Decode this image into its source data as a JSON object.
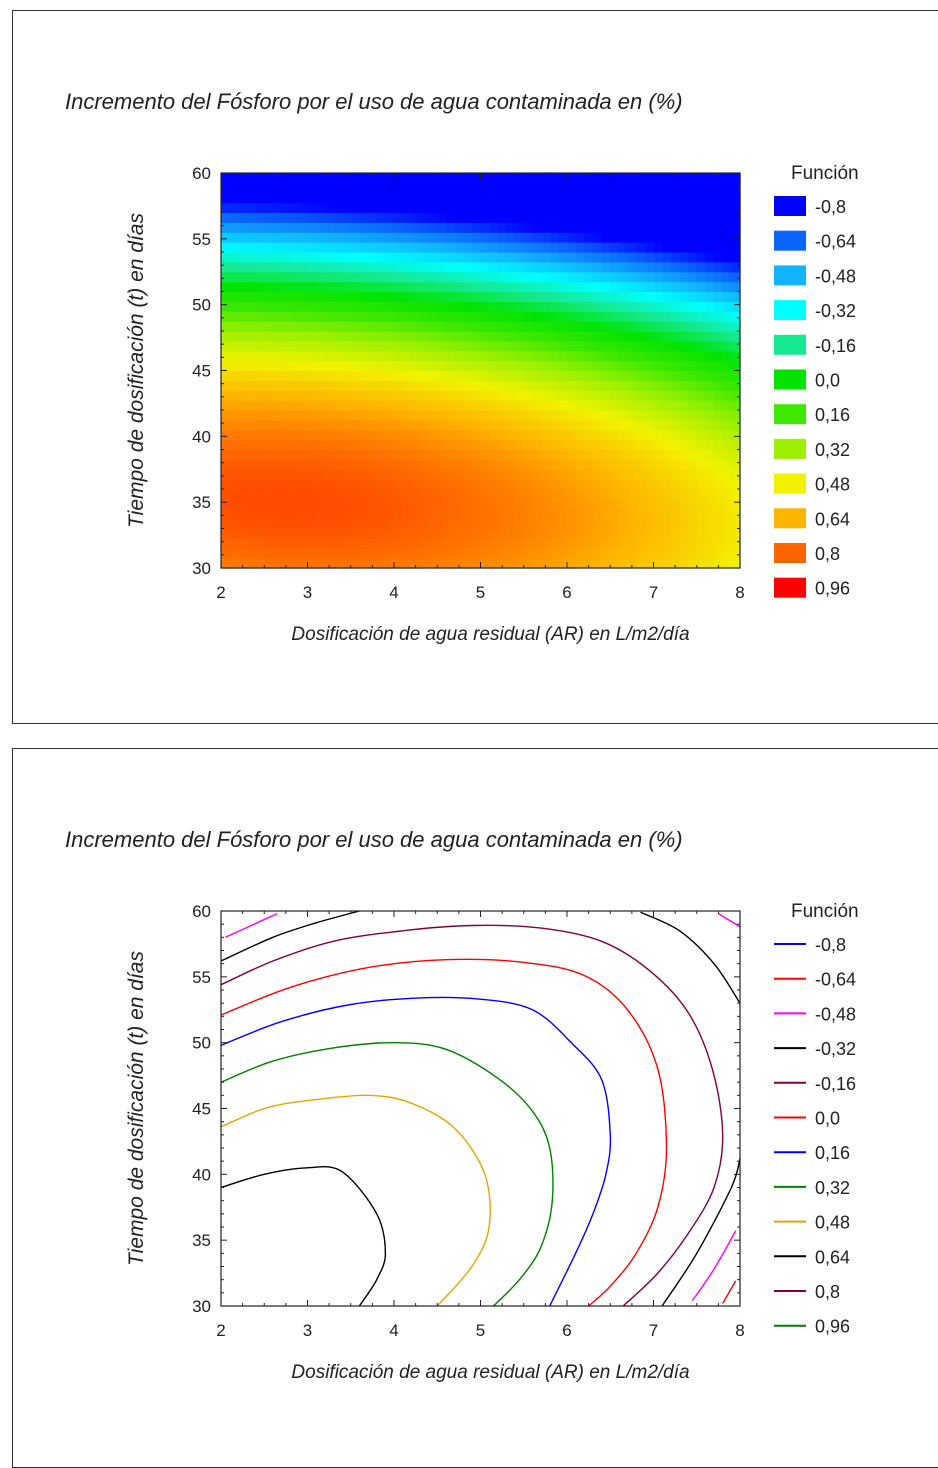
{
  "chart_data": [
    {
      "type": "heatmap",
      "title": "Incremento del Fósforo por el uso de agua contaminada en (%)",
      "xlabel": "Dosificación de agua residual (AR) en L/m2/día",
      "ylabel": "Tiempo de dosificación (t) en días",
      "xlim": [
        2,
        8
      ],
      "ylim": [
        30,
        60
      ],
      "xticks": [
        "2",
        "3",
        "4",
        "5",
        "6",
        "7",
        "8"
      ],
      "yticks": [
        "30",
        "35",
        "40",
        "45",
        "50",
        "55",
        "60"
      ],
      "legend_title": "Función",
      "legend_position": "right",
      "legend": [
        {
          "label": "-0,8",
          "color": "#0000ff"
        },
        {
          "label": "-0,64",
          "color": "#0a64ff"
        },
        {
          "label": "-0,48",
          "color": "#10b4ff"
        },
        {
          "label": "-0,32",
          "color": "#00ffff"
        },
        {
          "label": "-0,16",
          "color": "#16e892"
        },
        {
          "label": "0,0",
          "color": "#00e400"
        },
        {
          "label": "0,16",
          "color": "#3ee800"
        },
        {
          "label": "0,32",
          "color": "#9ef000"
        },
        {
          "label": "0,48",
          "color": "#f2f200"
        },
        {
          "label": "0,64",
          "color": "#ffb400"
        },
        {
          "label": "0,8",
          "color": "#ff6400"
        },
        {
          "label": "0,96",
          "color": "#ff0000"
        }
      ]
    },
    {
      "type": "contour",
      "title": "Incremento del Fósforo por el uso de agua contaminada en (%)",
      "xlabel": "Dosificación de agua residual (AR) en L/m2/día",
      "ylabel": "Tiempo de dosificación (t) en días",
      "xlim": [
        2,
        8
      ],
      "ylim": [
        30,
        60
      ],
      "xticks": [
        "2",
        "3",
        "4",
        "5",
        "6",
        "7",
        "8"
      ],
      "yticks": [
        "30",
        "35",
        "40",
        "45",
        "50",
        "55",
        "60"
      ],
      "legend_title": "Función",
      "legend_position": "right",
      "legend": [
        {
          "label": "-0,8",
          "color": "#0000ff"
        },
        {
          "label": "-0,64",
          "color": "#ff0000"
        },
        {
          "label": "-0,48",
          "color": "#ff00ff"
        },
        {
          "label": "-0,32",
          "color": "#000000"
        },
        {
          "label": "-0,16",
          "color": "#800040"
        },
        {
          "label": "0,0",
          "color": "#ff0000"
        },
        {
          "label": "0,16",
          "color": "#0000ff"
        },
        {
          "label": "0,32",
          "color": "#008000"
        },
        {
          "label": "0,48",
          "color": "#e0a800"
        },
        {
          "label": "0,64",
          "color": "#000000"
        },
        {
          "label": "0,8",
          "color": "#800040"
        },
        {
          "label": "0,96",
          "color": "#008000"
        }
      ],
      "contours": [
        {
          "level": "0,64",
          "color": "#000000",
          "points": [
            [
              2,
              39
            ],
            [
              2.5,
              40
            ],
            [
              3,
              40.5
            ],
            [
              3.4,
              40.2
            ],
            [
              3.8,
              37
            ],
            [
              3.9,
              34
            ],
            [
              3.8,
              32
            ],
            [
              3.6,
              30
            ]
          ]
        },
        {
          "level": "0,48",
          "color": "#e0a800",
          "points": [
            [
              2,
              43.6
            ],
            [
              2.5,
              45
            ],
            [
              3,
              45.6
            ],
            [
              3.7,
              46
            ],
            [
              4.2,
              45.4
            ],
            [
              4.7,
              43.5
            ],
            [
              5.05,
              40
            ],
            [
              5.1,
              36
            ],
            [
              4.9,
              33
            ],
            [
              4.5,
              30
            ]
          ]
        },
        {
          "level": "0,32",
          "color": "#008000",
          "points": [
            [
              2,
              47
            ],
            [
              2.6,
              48.6
            ],
            [
              3.3,
              49.6
            ],
            [
              4,
              50
            ],
            [
              4.6,
              49.5
            ],
            [
              5.2,
              47.3
            ],
            [
              5.6,
              44.8
            ],
            [
              5.8,
              42
            ],
            [
              5.83,
              38
            ],
            [
              5.7,
              34.5
            ],
            [
              5.45,
              32
            ],
            [
              5.15,
              30
            ]
          ]
        },
        {
          "level": "0,16",
          "color": "#0000ff",
          "points": [
            [
              2,
              49.8
            ],
            [
              2.7,
              51.6
            ],
            [
              3.5,
              52.9
            ],
            [
              4.3,
              53.4
            ],
            [
              5,
              53.3
            ],
            [
              5.6,
              52.5
            ],
            [
              6.05,
              50
            ],
            [
              6.4,
              47.2
            ],
            [
              6.5,
              43
            ],
            [
              6.45,
              40
            ],
            [
              6.3,
              37
            ],
            [
              6.1,
              34
            ],
            [
              5.8,
              30
            ]
          ]
        },
        {
          "level": "0,0",
          "color": "#ff0000",
          "points": [
            [
              2,
              52.1
            ],
            [
              2.8,
              54.2
            ],
            [
              3.7,
              55.7
            ],
            [
              4.6,
              56.3
            ],
            [
              5.5,
              56.1
            ],
            [
              6.2,
              55.1
            ],
            [
              6.7,
              52.5
            ],
            [
              7.05,
              48
            ],
            [
              7.15,
              42
            ],
            [
              7.05,
              37.5
            ],
            [
              6.8,
              34
            ],
            [
              6.5,
              31.5
            ],
            [
              6.25,
              30
            ]
          ]
        },
        {
          "level": "-0,16",
          "color": "#800040",
          "points": [
            [
              2,
              54.4
            ],
            [
              2.6,
              56.2
            ],
            [
              3.3,
              57.7
            ],
            [
              4.1,
              58.5
            ],
            [
              4.9,
              58.9
            ],
            [
              5.7,
              58.7
            ],
            [
              6.4,
              57.7
            ],
            [
              6.95,
              55.5
            ],
            [
              7.4,
              52.3
            ],
            [
              7.68,
              48
            ],
            [
              7.8,
              43
            ],
            [
              7.7,
              39
            ],
            [
              7.4,
              35.5
            ],
            [
              7.05,
              32.5
            ],
            [
              6.65,
              30
            ]
          ]
        },
        {
          "level": "-0,32",
          "color": "#000000",
          "points": [
            [
              2,
              56.2
            ],
            [
              2.6,
              58
            ],
            [
              3.1,
              59.1
            ],
            [
              3.6,
              60
            ]
          ]
        },
        {
          "level": "-0,32",
          "color": "#000000",
          "points": [
            [
              6.85,
              59.9
            ],
            [
              7.3,
              58.5
            ],
            [
              7.7,
              56
            ],
            [
              8,
              53
            ]
          ]
        },
        {
          "level": "-0,32",
          "color": "#000000",
          "points": [
            [
              7.1,
              30
            ],
            [
              7.5,
              34
            ],
            [
              7.9,
              39
            ],
            [
              8,
              41.2
            ]
          ]
        },
        {
          "level": "-0,48",
          "color": "#ff00ff",
          "points": [
            [
              2.05,
              58
            ],
            [
              2.35,
              58.9
            ],
            [
              2.65,
              59.8
            ]
          ]
        },
        {
          "level": "-0,48",
          "color": "#ff00ff",
          "points": [
            [
              7.75,
              59.8
            ],
            [
              7.9,
              59.2
            ],
            [
              8,
              58.8
            ]
          ]
        },
        {
          "level": "-0,48",
          "color": "#ff00ff",
          "points": [
            [
              7.45,
              30.4
            ],
            [
              7.7,
              32.8
            ],
            [
              7.95,
              35.7
            ]
          ]
        },
        {
          "level": "-0,64",
          "color": "#ff0000",
          "points": [
            [
              7.8,
              30.2
            ],
            [
              7.95,
              31.9
            ]
          ]
        }
      ]
    }
  ]
}
